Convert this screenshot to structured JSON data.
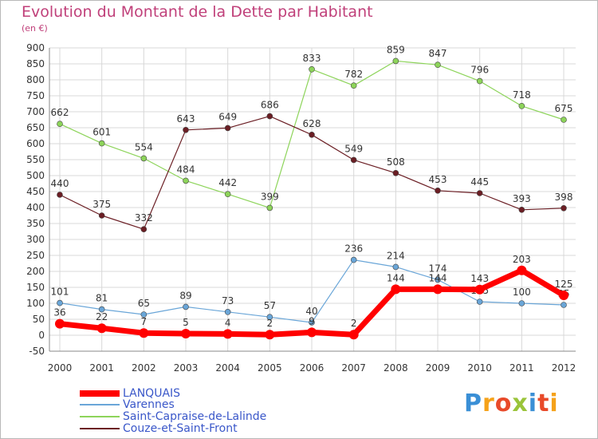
{
  "title": "Evolution du Montant de la Dette par Habitant",
  "subtitle": "(en €)",
  "logo": {
    "text": "Proxiti",
    "colors": [
      "#3a8fd6",
      "#f5a21a",
      "#e84a2a",
      "#9ac43a",
      "#3a8fd6",
      "#e84a2a",
      "#f5a21a"
    ]
  },
  "chart_data": {
    "type": "line",
    "x": [
      "2000",
      "2001",
      "2002",
      "2003",
      "2004",
      "2005",
      "2006",
      "2007",
      "2008",
      "2009",
      "2010",
      "2011",
      "2012"
    ],
    "ylim": [
      -50,
      900
    ],
    "yticks": [
      -50,
      0,
      50,
      100,
      150,
      200,
      250,
      300,
      350,
      400,
      450,
      500,
      550,
      600,
      650,
      700,
      750,
      800,
      850,
      900
    ],
    "grid": true,
    "legend_position": "bottom-left",
    "series": [
      {
        "name": "Saint-Capraise-de-Lalinde",
        "color": "#8dd45a",
        "values": [
          662,
          601,
          554,
          484,
          442,
          399,
          833,
          782,
          859,
          847,
          796,
          718,
          675
        ]
      },
      {
        "name": "Couze-et-Saint-Front",
        "color": "#6b1e24",
        "values": [
          440,
          375,
          332,
          643,
          649,
          686,
          628,
          549,
          508,
          453,
          445,
          393,
          398
        ]
      },
      {
        "name": "Varennes",
        "color": "#6aa6d8",
        "values": [
          101,
          81,
          65,
          89,
          73,
          57,
          40,
          236,
          214,
          174,
          105,
          100,
          95
        ]
      },
      {
        "name": "LANQUAIS",
        "color": "#ff0000",
        "values": [
          36,
          22,
          7,
          5,
          4,
          2,
          9,
          2,
          144,
          144,
          143,
          203,
          125
        ]
      }
    ]
  }
}
